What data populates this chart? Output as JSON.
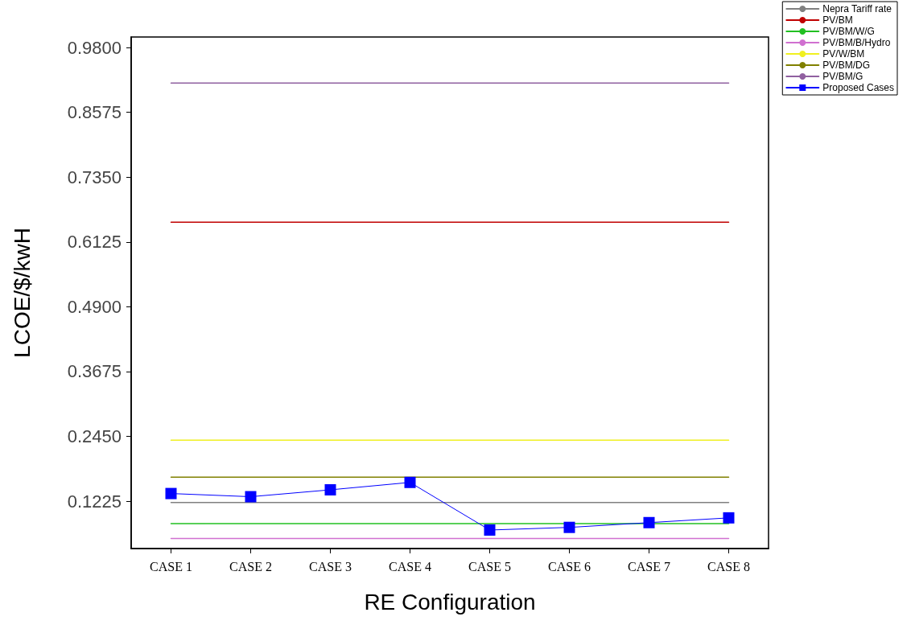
{
  "chart_data": {
    "type": "line",
    "xlabel": "RE Configuration",
    "ylabel": "LCOE/$/kwH",
    "categories": [
      "CASE 1",
      "CASE 2",
      "CASE 3",
      "CASE 4",
      "CASE 5",
      "CASE 6",
      "CASE 7",
      "CASE 8"
    ],
    "series": [
      {
        "name": "Nepra Tariff rate",
        "color": "#808080",
        "marker": "none",
        "values": [
          0.12,
          0.12,
          0.12,
          0.12,
          0.12,
          0.12,
          0.12,
          0.12
        ]
      },
      {
        "name": "PV/BM",
        "color": "#c00000",
        "marker": "none",
        "values": [
          0.65,
          0.65,
          0.65,
          0.65,
          0.65,
          0.65,
          0.65,
          0.65
        ]
      },
      {
        "name": "PV/BM/W/G",
        "color": "#22c022",
        "marker": "none",
        "values": [
          0.08,
          0.08,
          0.08,
          0.08,
          0.08,
          0.08,
          0.08,
          0.08
        ]
      },
      {
        "name": "PV/BM/B/Hydro",
        "color": "#d070d0",
        "marker": "none",
        "values": [
          0.052,
          0.052,
          0.052,
          0.052,
          0.052,
          0.052,
          0.052,
          0.052
        ]
      },
      {
        "name": "PV/W/BM",
        "color": "#f0f020",
        "marker": "none",
        "values": [
          0.238,
          0.238,
          0.238,
          0.238,
          0.238,
          0.238,
          0.238,
          0.238
        ]
      },
      {
        "name": "PV/BM/DG",
        "color": "#808000",
        "marker": "none",
        "values": [
          0.168,
          0.168,
          0.168,
          0.168,
          0.168,
          0.168,
          0.168,
          0.168
        ]
      },
      {
        "name": "PV/BM/G",
        "color": "#9060a0",
        "marker": "none",
        "values": [
          0.913,
          0.913,
          0.913,
          0.913,
          0.913,
          0.913,
          0.913,
          0.913
        ]
      },
      {
        "name": "Proposed Cases",
        "color": "#0000ff",
        "marker": "square",
        "values": [
          0.137,
          0.131,
          0.144,
          0.158,
          0.068,
          0.073,
          0.082,
          0.091
        ]
      }
    ],
    "ylim": [
      0.033,
      1.0
    ],
    "yticks": [
      {
        "value": 0.1225,
        "label": "0.1225"
      },
      {
        "value": 0.245,
        "label": "0.2450"
      },
      {
        "value": 0.3675,
        "label": "0.3675"
      },
      {
        "value": 0.49,
        "label": "0.4900"
      },
      {
        "value": 0.6125,
        "label": "0.6125"
      },
      {
        "value": 0.735,
        "label": "0.7350"
      },
      {
        "value": 0.8575,
        "label": "0.8575"
      },
      {
        "value": 0.98,
        "label": "0.9800"
      }
    ],
    "grid": false,
    "legend": "top right",
    "line_style": "solid"
  }
}
